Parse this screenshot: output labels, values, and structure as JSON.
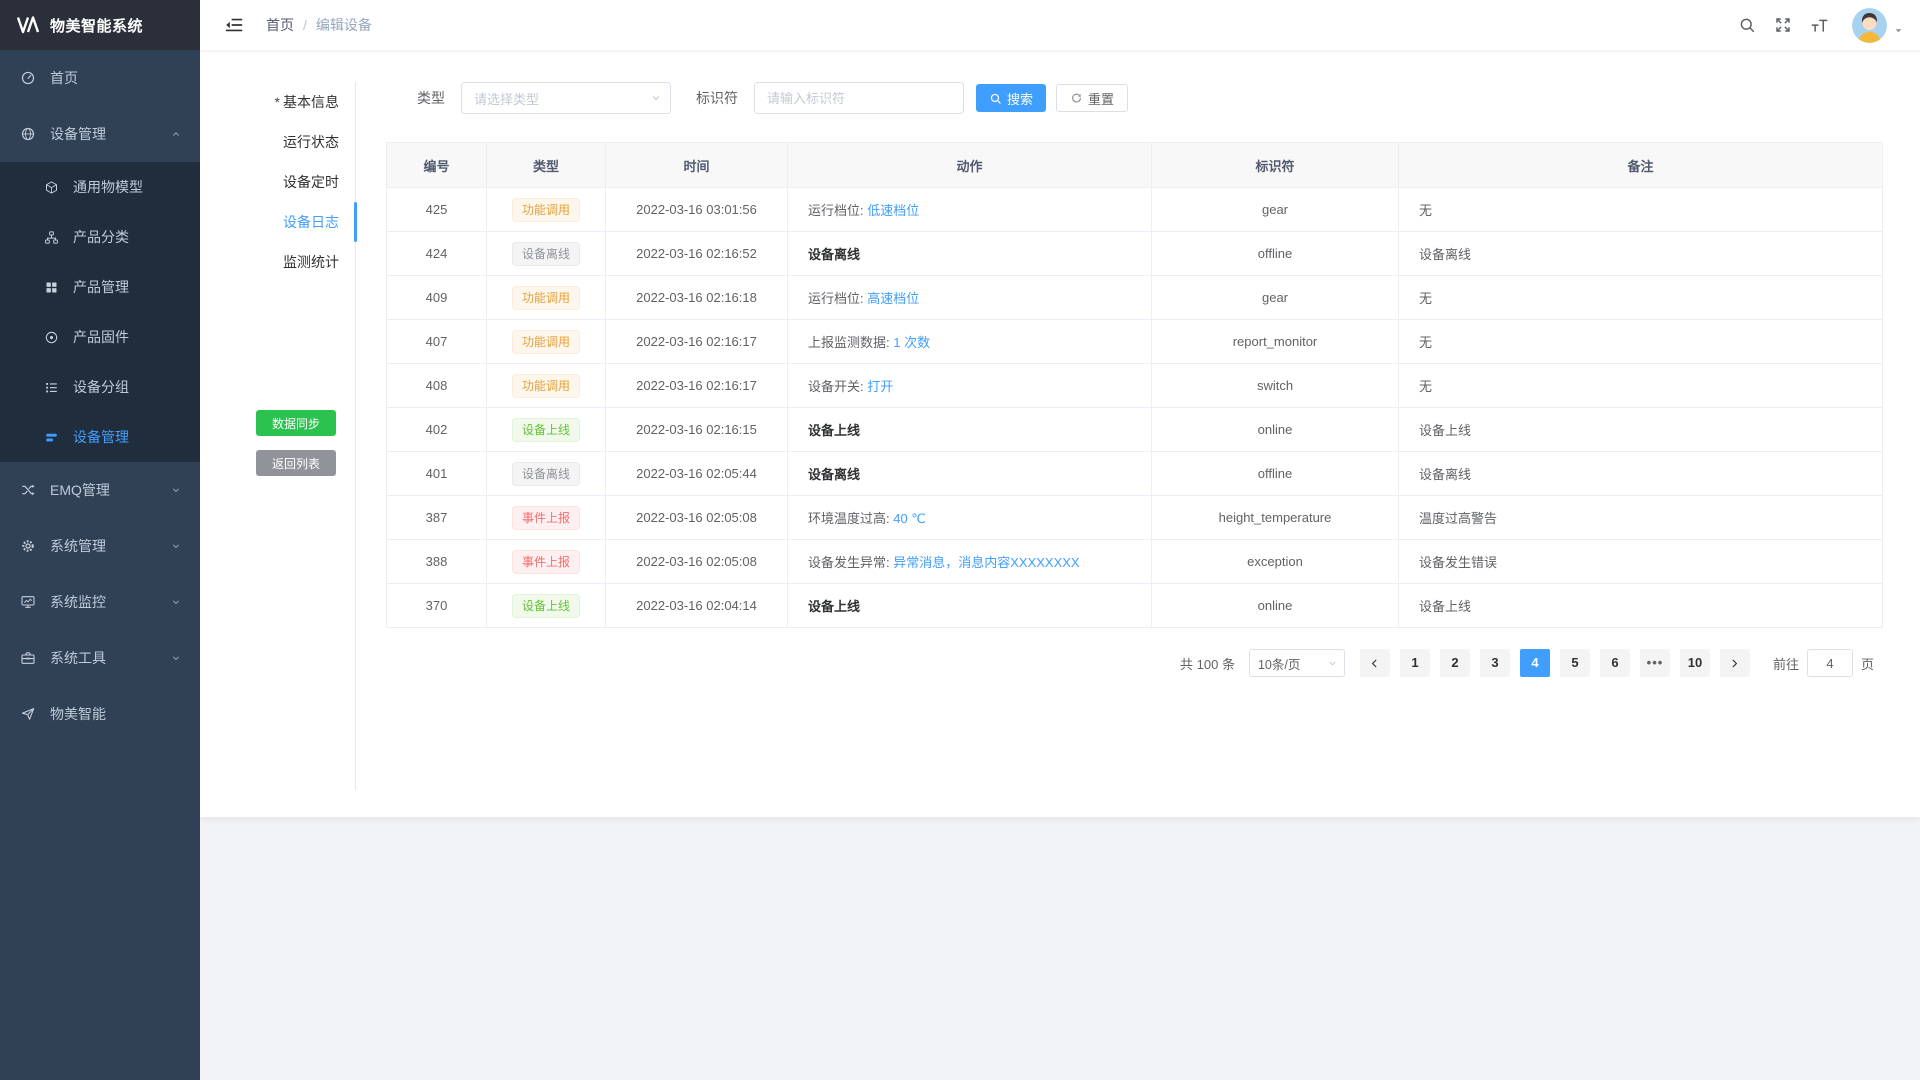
{
  "app": {
    "title": "物美智能系统"
  },
  "sidebar": {
    "items": [
      {
        "key": "home",
        "label": "首页",
        "icon": "dashboard-icon"
      },
      {
        "key": "device-management",
        "label": "设备管理",
        "icon": "globe-icon",
        "expanded": true,
        "children": [
          {
            "key": "thing-model",
            "label": "通用物模型",
            "icon": "cube-icon"
          },
          {
            "key": "product-category",
            "label": "产品分类",
            "icon": "sitemap-icon"
          },
          {
            "key": "product-management",
            "label": "产品管理",
            "icon": "grid-icon"
          },
          {
            "key": "product-firmware",
            "label": "产品固件",
            "icon": "firmware-icon"
          },
          {
            "key": "device-group",
            "label": "设备分组",
            "icon": "group-icon"
          },
          {
            "key": "device-list",
            "label": "设备管理",
            "icon": "device-list-icon",
            "active": true
          }
        ]
      },
      {
        "key": "emq-management",
        "label": "EMQ管理",
        "icon": "exchange-icon",
        "collapsed": true
      },
      {
        "key": "system-management",
        "label": "系统管理",
        "icon": "gear-icon",
        "collapsed": true
      },
      {
        "key": "system-monitor",
        "label": "系统监控",
        "icon": "monitor-icon",
        "collapsed": true
      },
      {
        "key": "system-tools",
        "label": "系统工具",
        "icon": "toolbox-icon",
        "collapsed": true
      },
      {
        "key": "wumei-smart",
        "label": "物美智能",
        "icon": "send-icon"
      }
    ]
  },
  "navbar": {
    "breadcrumb_home": "首页",
    "breadcrumb_separator": "/",
    "breadcrumb_current": "编辑设备"
  },
  "panel": {
    "tabs": [
      {
        "key": "basic-info",
        "label": "基本信息",
        "required": true
      },
      {
        "key": "running-status",
        "label": "运行状态"
      },
      {
        "key": "device-timer",
        "label": "设备定时"
      },
      {
        "key": "device-log",
        "label": "设备日志",
        "active": true
      },
      {
        "key": "monitor-stats",
        "label": "监测统计"
      }
    ],
    "sync_button": "数据同步",
    "back_button": "返回列表"
  },
  "filter": {
    "type_label": "类型",
    "type_placeholder": "请选择类型",
    "identifier_label": "标识符",
    "identifier_placeholder": "请输入标识符",
    "search_button": "搜索",
    "reset_button": "重置"
  },
  "table": {
    "columns": [
      "编号",
      "类型",
      "时间",
      "动作",
      "标识符",
      "备注"
    ],
    "rows": [
      {
        "no": "425",
        "tag": "功能调用",
        "tag_type": "warning",
        "time": "2022-03-16 03:01:56",
        "action": {
          "text": "运行档位: ",
          "link": "低速档位"
        },
        "identifier": "gear",
        "remark": "无"
      },
      {
        "no": "424",
        "tag": "设备离线",
        "tag_type": "info",
        "time": "2022-03-16 02:16:52",
        "action": {
          "text": "设备离线",
          "bold": true
        },
        "identifier": "offline",
        "remark": "设备离线"
      },
      {
        "no": "409",
        "tag": "功能调用",
        "tag_type": "warning",
        "time": "2022-03-16 02:16:18",
        "action": {
          "text": "运行档位: ",
          "link": "高速档位"
        },
        "identifier": "gear",
        "remark": "无"
      },
      {
        "no": "407",
        "tag": "功能调用",
        "tag_type": "warning",
        "time": "2022-03-16 02:16:17",
        "action": {
          "text": "上报监测数据: ",
          "link": "1 次数"
        },
        "identifier": "report_monitor",
        "remark": "无"
      },
      {
        "no": "408",
        "tag": "功能调用",
        "tag_type": "warning",
        "time": "2022-03-16 02:16:17",
        "action": {
          "text": "设备开关: ",
          "link": "打开"
        },
        "identifier": "switch",
        "remark": "无"
      },
      {
        "no": "402",
        "tag": "设备上线",
        "tag_type": "success",
        "time": "2022-03-16 02:16:15",
        "action": {
          "text": "设备上线",
          "bold": true
        },
        "identifier": "online",
        "remark": "设备上线"
      },
      {
        "no": "401",
        "tag": "设备离线",
        "tag_type": "info",
        "time": "2022-03-16 02:05:44",
        "action": {
          "text": "设备离线",
          "bold": true
        },
        "identifier": "offline",
        "remark": "设备离线"
      },
      {
        "no": "387",
        "tag": "事件上报",
        "tag_type": "danger",
        "time": "2022-03-16 02:05:08",
        "action": {
          "text": "环境温度过高: ",
          "link": "40 ℃"
        },
        "identifier": "height_temperature",
        "remark": "温度过高警告"
      },
      {
        "no": "388",
        "tag": "事件上报",
        "tag_type": "danger",
        "time": "2022-03-16 02:05:08",
        "action": {
          "text": "设备发生异常: ",
          "link": "异常消息，消息内容XXXXXXXX"
        },
        "identifier": "exception",
        "remark": "设备发生错误"
      },
      {
        "no": "370",
        "tag": "设备上线",
        "tag_type": "success",
        "time": "2022-03-16 02:04:14",
        "action": {
          "text": "设备上线",
          "bold": true
        },
        "identifier": "online",
        "remark": "设备上线"
      }
    ]
  },
  "pagination": {
    "total_text": "共 100 条",
    "page_size": "10条/页",
    "pages": [
      "1",
      "2",
      "3",
      "4",
      "5",
      "6",
      "•••",
      "10"
    ],
    "active_page": "4",
    "goto_label": "前往",
    "goto_value": "4",
    "goto_suffix": "页"
  },
  "colors": {
    "accent": "#409eff",
    "sidebar_bg": "#304156",
    "submenu_bg": "#1f2d3d",
    "success_button": "#2bc24f",
    "info_button": "#909399",
    "tag_warning": "#e6a23c",
    "tag_info": "#909399",
    "tag_success": "#67c23a",
    "tag_danger": "#f56c6c"
  }
}
